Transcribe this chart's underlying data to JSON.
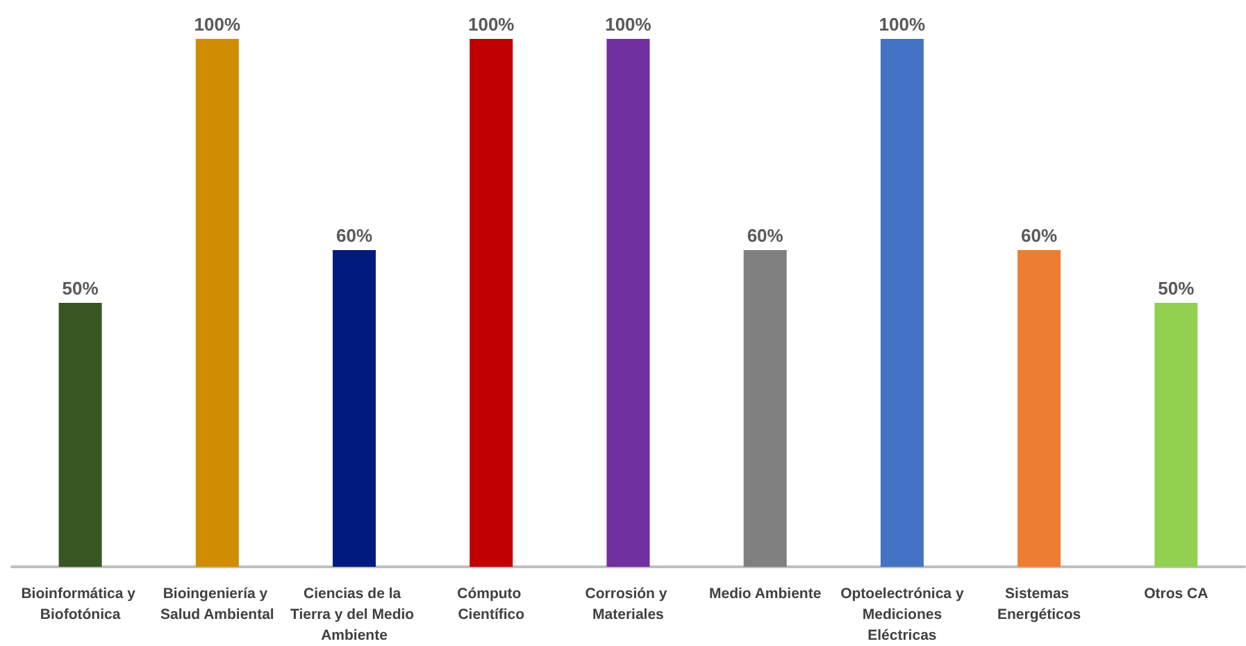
{
  "chart_data": {
    "type": "bar",
    "categories": [
      "Bioinformática y Biofotónica",
      "Bioingeniería y Salud Ambiental",
      "Ciencias de la Tierra y del Medio Ambiente",
      "Cómputo Científico",
      "Corrosión y Materiales",
      "Medio Ambiente",
      "Optoelectrónica y Mediciones Eléctricas",
      "Sistemas Energéticos",
      "Otros CA"
    ],
    "values": [
      50,
      100,
      60,
      100,
      100,
      60,
      100,
      60,
      50
    ],
    "value_labels": [
      "50%",
      "100%",
      "60%",
      "100%",
      "100%",
      "60%",
      "100%",
      "60%",
      "50%"
    ],
    "colors": [
      "#375623",
      "#d08c00",
      "#001a80",
      "#c00000",
      "#7030a0",
      "#808080",
      "#4472c4",
      "#ed7d31",
      "#92d050"
    ]
  }
}
